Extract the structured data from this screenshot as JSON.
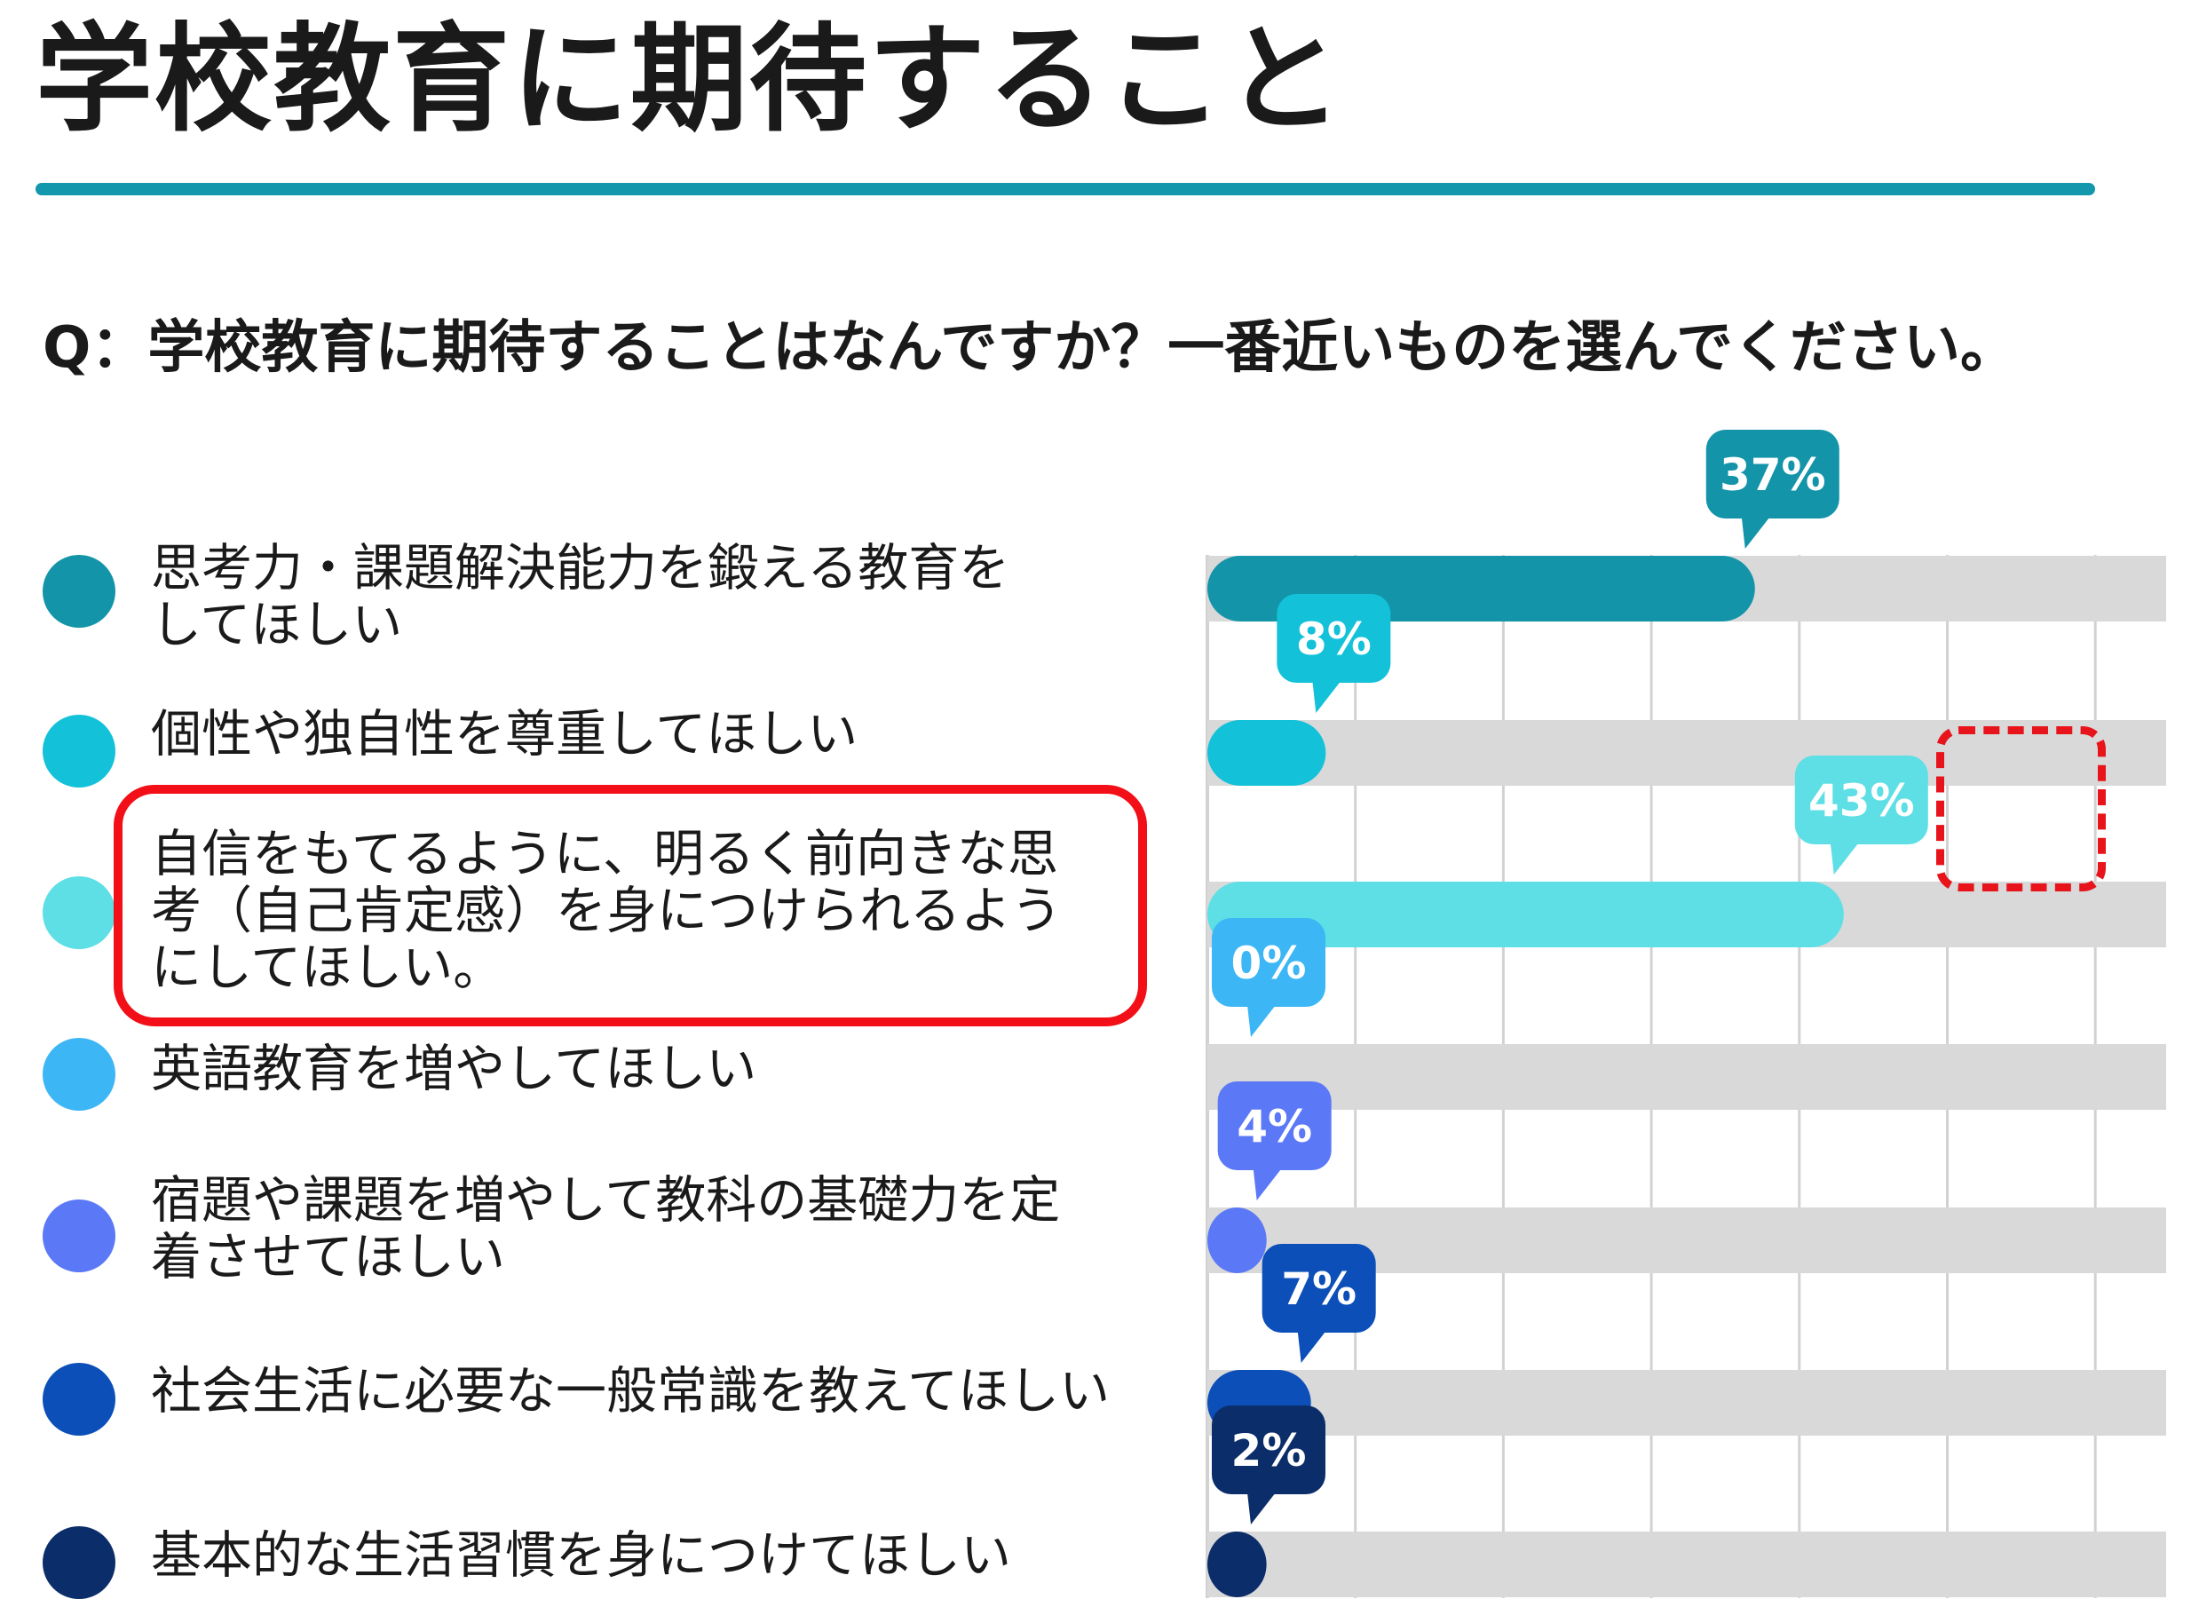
{
  "page": {
    "title": "学校教育に期待すること",
    "question": "Q：学校教育に期待することはなんですか？一番近いものを選んでください。"
  },
  "chart_data": {
    "type": "bar",
    "orientation": "horizontal",
    "title": "",
    "xlabel": "",
    "ylabel": "",
    "xlim": [
      0,
      65
    ],
    "grid": true,
    "categories": [
      "思考力・課題解決能力を鍛える教育をしてほしい",
      "個性や独自性を尊重してほしい",
      "自信をもてるように、明るく前向きな思考（自己肯定感）を身につけられるようにしてほしい。",
      "英語教育を増やしてほしい",
      "宿題や課題を増やして教科の基礎力を定着させてほしい",
      "社会生活に必要な一般常識を教えてほしい",
      "基本的な生活習慣を身につけてほしい"
    ],
    "label_lines": [
      [
        "思考力・課題解決能力を鍛える教育を",
        "してほしい"
      ],
      [
        "個性や独自性を尊重してほしい"
      ],
      [
        "自信をもてるように、明るく前向きな思",
        "考（自己肯定感）を身につけられるよう",
        "にしてほしい。"
      ],
      [
        "英語教育を増やしてほしい"
      ],
      [
        "宿題や課題を増やして教科の基礎力を定",
        "着させてほしい"
      ],
      [
        "社会生活に必要な一般常識を教えてほしい"
      ],
      [
        "基本的な生活習慣を身につけてほしい"
      ]
    ],
    "values": [
      37,
      8,
      43,
      0,
      4,
      7,
      2
    ],
    "value_labels": [
      "37%",
      "8%",
      "43%",
      "0%",
      "4%",
      "7%",
      "2%"
    ],
    "colors": [
      "#1394a9",
      "#13c1d9",
      "#5ddfe5",
      "#3db6f6",
      "#5b78f7",
      "#0c4fb8",
      "#0b2d69"
    ],
    "track_color": "#d9d9d9",
    "grid_color": "#d2d2d2",
    "highlighted_index": 2
  }
}
